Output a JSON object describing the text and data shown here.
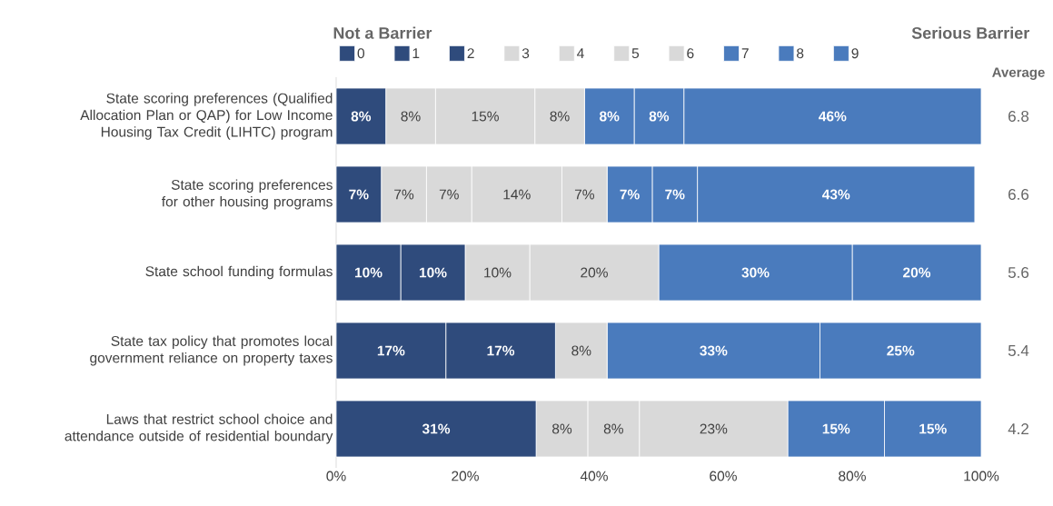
{
  "chart_data": {
    "type": "bar",
    "orientation": "horizontal",
    "stacked": true,
    "legend": "top",
    "categories": [
      "State scoring preferences (Qualified Allocation Plan or QAP) for Low Income Housing Tax Credit (LIHTC) program",
      "State scoring preferences for other housing programs",
      "State school funding formulas",
      "State tax policy that promotes local government reliance on property taxes",
      "Laws that restrict school choice and attendance outside of residential boundary"
    ],
    "series": [
      {
        "name": "0",
        "color": "#2f4b7c",
        "values": [
          7.7,
          7,
          10,
          17,
          31
        ],
        "value_labels": [
          "8%",
          "7%",
          "10%",
          "17%",
          "31%"
        ]
      },
      {
        "name": "1",
        "color": "#2f4b7c",
        "values": [
          0,
          0,
          10,
          17,
          0
        ],
        "value_labels": [
          null,
          null,
          "10%",
          "17%",
          null
        ]
      },
      {
        "name": "2",
        "color": "#2f4b7c",
        "values": [
          0,
          0,
          0,
          0,
          0
        ],
        "value_labels": [
          null,
          null,
          null,
          null,
          null
        ]
      },
      {
        "name": "3",
        "color": "#d9d9d9",
        "values": [
          0,
          7,
          10,
          0,
          8
        ],
        "value_labels": [
          null,
          "7%",
          "10%",
          null,
          "8%"
        ]
      },
      {
        "name": "4",
        "color": "#d9d9d9",
        "values": [
          7.7,
          7,
          0,
          8,
          8
        ],
        "value_labels": [
          "8%",
          "7%",
          null,
          "8%",
          "8%"
        ]
      },
      {
        "name": "5",
        "color": "#d9d9d9",
        "values": [
          15.4,
          14,
          20,
          0,
          0
        ],
        "value_labels": [
          "15%",
          "14%",
          "20%",
          null,
          null
        ]
      },
      {
        "name": "6",
        "color": "#d9d9d9",
        "values": [
          7.7,
          7,
          0,
          0,
          23
        ],
        "value_labels": [
          "8%",
          "7%",
          null,
          null,
          "23%"
        ]
      },
      {
        "name": "7",
        "color": "#4a7bbd",
        "values": [
          7.7,
          7,
          0,
          0,
          15
        ],
        "value_labels": [
          "8%",
          "7%",
          null,
          null,
          "15%"
        ]
      },
      {
        "name": "8",
        "color": "#4a7bbd",
        "values": [
          7.7,
          7,
          30,
          33,
          15
        ],
        "value_labels": [
          "8%",
          "7%",
          "30%",
          "33%",
          "15%"
        ]
      },
      {
        "name": "9",
        "color": "#4a7bbd",
        "values": [
          46.1,
          43,
          20,
          25,
          0
        ],
        "value_labels": [
          "46%",
          "43%",
          "20%",
          "25%",
          null
        ]
      }
    ],
    "xlim": [
      0,
      100
    ],
    "xticks": [
      {
        "value": 0,
        "label": "0%"
      },
      {
        "value": 20,
        "label": "20%"
      },
      {
        "value": 40,
        "label": "40%"
      },
      {
        "value": 60,
        "label": "60%"
      },
      {
        "value": 80,
        "label": "80%"
      },
      {
        "value": 100,
        "label": "100%"
      }
    ],
    "annotations": [
      "Not a Barrier",
      "Serious Barrier",
      "Average",
      "6.8",
      "6.6",
      "5.6",
      "5.4",
      "4.2"
    ]
  }
}
